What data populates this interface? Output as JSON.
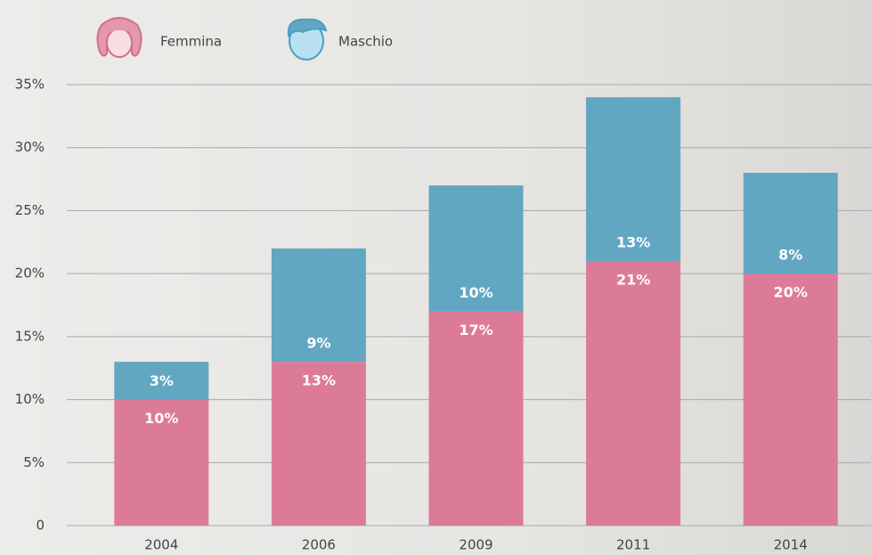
{
  "chart_data": {
    "type": "stacked_bar",
    "categories": [
      "2004",
      "2006",
      "2009",
      "2011",
      "2014"
    ],
    "series": [
      {
        "name": "Femmina",
        "color": "#dc7b97",
        "values": [
          10,
          13,
          17,
          21,
          20
        ],
        "value_labels": [
          "10%",
          "13%",
          "17%",
          "21%",
          "20%"
        ]
      },
      {
        "name": "Maschio",
        "color": "#62a7c2",
        "values": [
          3,
          9,
          10,
          13,
          8
        ],
        "value_labels": [
          "3%",
          "9%",
          "10%",
          "13%",
          "8%"
        ]
      }
    ],
    "ylim": [
      0,
      35
    ],
    "yticks": [
      0,
      {
        "value": 5,
        "label": "5%"
      },
      {
        "value": 10,
        "label": "10%"
      },
      {
        "value": 15,
        "label": "15%"
      },
      {
        "value": 20,
        "label": "20%"
      },
      {
        "value": 25,
        "label": "25%"
      },
      {
        "value": 30,
        "label": "30%"
      },
      {
        "value": 35,
        "label": "35%"
      }
    ],
    "grid": true,
    "legend": "top-left"
  }
}
